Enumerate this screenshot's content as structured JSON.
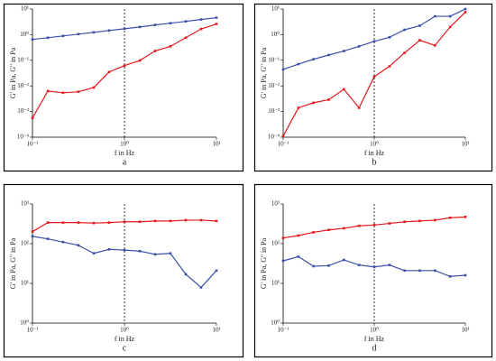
{
  "chart_data": [
    {
      "type": "line",
      "panel": "a",
      "xlabel": "f in Hz",
      "ylabel": "G' in Pa, G'' in Pa",
      "xscale": "log",
      "yscale": "log",
      "vline": 1,
      "x": [
        0.1,
        0.147,
        0.215,
        0.316,
        0.464,
        0.681,
        1,
        1.47,
        2.15,
        3.16,
        4.64,
        6.81,
        10
      ],
      "xlim": [
        0.1,
        10
      ],
      "xticks": [
        {
          "value": 0.1,
          "label": "10⁻¹"
        },
        {
          "value": 1,
          "label": "10⁰"
        },
        {
          "value": 10,
          "label": "10¹"
        }
      ],
      "ylim": [
        0.0001,
        10
      ],
      "yticks": [
        {
          "value": 0.0001,
          "label": "10⁻⁴"
        },
        {
          "value": 0.001,
          "label": "10⁻³"
        },
        {
          "value": 0.01,
          "label": "10⁻²"
        },
        {
          "value": 0.1,
          "label": "10⁻¹"
        },
        {
          "value": 1,
          "label": "10⁰"
        },
        {
          "value": 10,
          "label": "10¹"
        }
      ],
      "series": [
        {
          "color": "#3a50a8",
          "values": [
            0.65,
            0.76,
            0.89,
            1.05,
            1.23,
            1.45,
            1.7,
            2.0,
            2.4,
            2.8,
            3.3,
            3.9,
            4.6
          ]
        },
        {
          "color": "#e4171c",
          "values": [
            0.00056,
            0.0063,
            0.0054,
            0.0059,
            0.0087,
            0.035,
            0.062,
            0.098,
            0.23,
            0.35,
            0.76,
            1.66,
            2.6
          ]
        }
      ]
    },
    {
      "type": "line",
      "panel": "b",
      "xlabel": "f in Hz",
      "ylabel": "G' in Pa, G'' in Pa",
      "xscale": "log",
      "yscale": "log",
      "vline": 1,
      "x": [
        0.1,
        0.147,
        0.215,
        0.316,
        0.464,
        0.681,
        1,
        1.47,
        2.15,
        3.16,
        4.64,
        6.81,
        10
      ],
      "xlim": [
        0.1,
        10
      ],
      "xticks": [
        {
          "value": 0.1,
          "label": "10⁻¹"
        },
        {
          "value": 1,
          "label": "10⁰"
        },
        {
          "value": 10,
          "label": "10¹"
        }
      ],
      "ylim": [
        0.0001,
        10
      ],
      "yticks": [
        {
          "value": 0.0001,
          "label": "10⁻⁴"
        },
        {
          "value": 0.001,
          "label": "10⁻³"
        },
        {
          "value": 0.01,
          "label": "10⁻²"
        },
        {
          "value": 0.1,
          "label": "10⁻¹"
        },
        {
          "value": 1,
          "label": "10⁰"
        },
        {
          "value": 10,
          "label": "10¹"
        }
      ],
      "series": [
        {
          "color": "#3a50a8",
          "values": [
            0.044,
            0.071,
            0.11,
            0.16,
            0.23,
            0.35,
            0.55,
            0.79,
            1.55,
            2.24,
            5.2,
            5.2,
            10
          ]
        },
        {
          "color": "#e4171c",
          "values": [
            0.00011,
            0.0014,
            0.0022,
            0.0029,
            0.0074,
            0.0014,
            0.023,
            0.058,
            0.195,
            0.6,
            0.38,
            2.0,
            7.6
          ]
        }
      ]
    },
    {
      "type": "line",
      "panel": "c",
      "xlabel": "f in Hz",
      "ylabel": "G' in Pa, G'' in Pa",
      "xscale": "log",
      "yscale": "log",
      "vline": 1,
      "x": [
        0.1,
        0.147,
        0.215,
        0.316,
        0.464,
        0.681,
        1,
        1.47,
        2.15,
        3.16,
        4.64,
        6.81,
        10
      ],
      "xlim": [
        0.1,
        10
      ],
      "xticks": [
        {
          "value": 0.1,
          "label": "10⁻¹"
        },
        {
          "value": 1,
          "label": "10⁰"
        },
        {
          "value": 10,
          "label": "10¹"
        }
      ],
      "ylim": [
        1,
        1000
      ],
      "yticks": [
        {
          "value": 1,
          "label": "10⁰"
        },
        {
          "value": 10,
          "label": "10¹"
        },
        {
          "value": 100,
          "label": "10²"
        },
        {
          "value": 1000,
          "label": "10³"
        }
      ],
      "series": [
        {
          "color": "#e4171c",
          "values": [
            202,
            340,
            340,
            340,
            330,
            340,
            356,
            356,
            373,
            373,
            391,
            391,
            373
          ]
        },
        {
          "color": "#3a50a8",
          "values": [
            153,
            132,
            110,
            91,
            57,
            72,
            69,
            65,
            54,
            57,
            17,
            7.9,
            21
          ]
        }
      ]
    },
    {
      "type": "line",
      "panel": "d",
      "xlabel": "f in Hz",
      "ylabel": "G' in Pa, G'' in Pa",
      "xscale": "log",
      "yscale": "log",
      "vline": 1,
      "x": [
        0.1,
        0.147,
        0.215,
        0.316,
        0.464,
        0.681,
        1,
        1.47,
        2.15,
        3.16,
        4.64,
        6.81,
        10
      ],
      "xlim": [
        0.1,
        10
      ],
      "xticks": [
        {
          "value": 0.1,
          "label": "10⁻¹"
        },
        {
          "value": 1,
          "label": "10⁰"
        },
        {
          "value": 10,
          "label": "10¹"
        }
      ],
      "ylim": [
        1,
        1000
      ],
      "yticks": [
        {
          "value": 1,
          "label": "10⁰"
        },
        {
          "value": 10,
          "label": "10¹"
        },
        {
          "value": 100,
          "label": "10²"
        },
        {
          "value": 1000,
          "label": "10³"
        }
      ],
      "series": [
        {
          "color": "#e4171c",
          "values": [
            139,
            160,
            193,
            222,
            244,
            281,
            295,
            324,
            356,
            373,
            391,
            450,
            471
          ]
        },
        {
          "color": "#3a50a8",
          "values": [
            37,
            47,
            27,
            28,
            39,
            29,
            26,
            29,
            21,
            21,
            21,
            15,
            16
          ]
        }
      ]
    }
  ]
}
